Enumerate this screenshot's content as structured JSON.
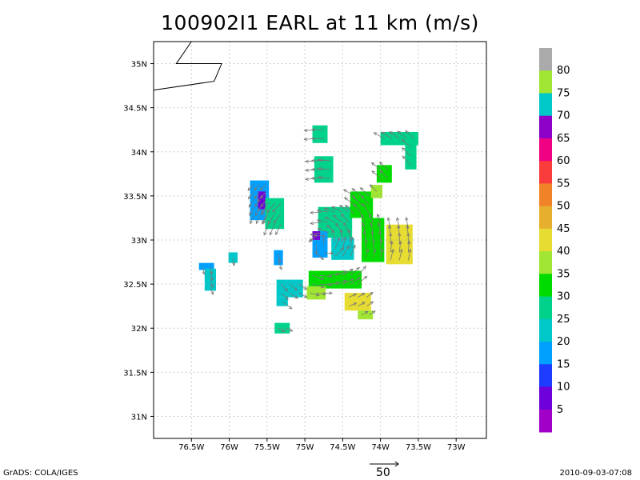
{
  "title": "100902I1 EARL at 11 km (m/s)",
  "footer": {
    "left": "GrADS: COLA/IGES",
    "right": "2010-09-03-07:08",
    "vector_scale_label": "50"
  },
  "chart_data": {
    "type": "heatmap",
    "title": "100902I1 EARL at 11 km (m/s)",
    "xlim": [
      -77.0,
      -72.6
    ],
    "ylim": [
      30.75,
      35.25
    ],
    "x_tick_values": [
      -76.5,
      -76.0,
      -75.5,
      -75.0,
      -74.5,
      -74.0,
      -73.5,
      -73.0
    ],
    "x_tick_labels": [
      "76.5W",
      "76W",
      "75.5W",
      "75W",
      "74.5W",
      "74W",
      "73.5W",
      "73W"
    ],
    "y_tick_values": [
      31.0,
      31.5,
      32.0,
      32.5,
      33.0,
      33.5,
      34.0,
      34.5,
      35.0
    ],
    "y_tick_labels": [
      "31N",
      "31.5N",
      "32N",
      "32.5N",
      "33N",
      "33.5N",
      "34N",
      "34.5N",
      "35N"
    ],
    "grid": true,
    "colorbar": {
      "labels": [
        "5",
        "10",
        "15",
        "20",
        "25",
        "30",
        "35",
        "40",
        "45",
        "50",
        "55",
        "60",
        "65",
        "70",
        "75",
        "80"
      ],
      "colors": [
        "#a000c8",
        "#6e00dc",
        "#1e3cff",
        "#00a0ff",
        "#00c8c8",
        "#00d28c",
        "#00dc00",
        "#a0e632",
        "#e6dc32",
        "#e6af2d",
        "#f08228",
        "#fa3c3c",
        "#f00082",
        "#8c00c8",
        "#00c8c8",
        "#a0e632",
        "#aaaaaa"
      ]
    },
    "vector_scale": 50,
    "coastline": [
      [
        -76.5,
        35.25
      ],
      [
        -76.7,
        35.0
      ],
      [
        -76.1,
        35.0
      ],
      [
        -76.2,
        34.8
      ],
      [
        -77.0,
        34.7
      ]
    ],
    "coastline_dashed": [
      [
        -76.7,
        35.0
      ],
      [
        -76.3,
        35.0
      ]
    ],
    "cells": [
      {
        "lon": -76.3,
        "lat": 32.7,
        "lon_w": 0.2,
        "lat_h": 0.08,
        "v": 15
      },
      {
        "lon": -76.25,
        "lat": 32.55,
        "lon_w": 0.15,
        "lat_h": 0.25,
        "v": 22
      },
      {
        "lon": -75.95,
        "lat": 32.8,
        "lon_w": 0.12,
        "lat_h": 0.12,
        "v": 22
      },
      {
        "lon": -75.6,
        "lat": 33.45,
        "lon_w": 0.25,
        "lat_h": 0.45,
        "v": 15
      },
      {
        "lon": -75.57,
        "lat": 33.45,
        "lon_w": 0.1,
        "lat_h": 0.2,
        "v": 7
      },
      {
        "lon": -75.4,
        "lat": 33.3,
        "lon_w": 0.25,
        "lat_h": 0.35,
        "v": 27
      },
      {
        "lon": -75.35,
        "lat": 32.8,
        "lon_w": 0.12,
        "lat_h": 0.17,
        "v": 16
      },
      {
        "lon": -75.2,
        "lat": 32.45,
        "lon_w": 0.35,
        "lat_h": 0.2,
        "v": 24
      },
      {
        "lon": -75.3,
        "lat": 32.3,
        "lon_w": 0.15,
        "lat_h": 0.1,
        "v": 20
      },
      {
        "lon": -75.3,
        "lat": 32.0,
        "lon_w": 0.2,
        "lat_h": 0.12,
        "v": 28
      },
      {
        "lon": -74.8,
        "lat": 34.2,
        "lon_w": 0.2,
        "lat_h": 0.2,
        "v": 27
      },
      {
        "lon": -74.75,
        "lat": 33.8,
        "lon_w": 0.25,
        "lat_h": 0.3,
        "v": 27
      },
      {
        "lon": -74.6,
        "lat": 33.2,
        "lon_w": 0.45,
        "lat_h": 0.35,
        "v": 26
      },
      {
        "lon": -74.8,
        "lat": 32.95,
        "lon_w": 0.2,
        "lat_h": 0.3,
        "v": 17
      },
      {
        "lon": -74.85,
        "lat": 33.05,
        "lon_w": 0.1,
        "lat_h": 0.1,
        "v": 8
      },
      {
        "lon": -74.5,
        "lat": 32.9,
        "lon_w": 0.3,
        "lat_h": 0.25,
        "v": 20
      },
      {
        "lon": -74.6,
        "lat": 32.55,
        "lon_w": 0.7,
        "lat_h": 0.2,
        "v": 34
      },
      {
        "lon": -74.85,
        "lat": 32.4,
        "lon_w": 0.25,
        "lat_h": 0.15,
        "v": 38
      },
      {
        "lon": -74.3,
        "lat": 32.3,
        "lon_w": 0.35,
        "lat_h": 0.2,
        "v": 43
      },
      {
        "lon": -74.2,
        "lat": 32.15,
        "lon_w": 0.2,
        "lat_h": 0.1,
        "v": 35
      },
      {
        "lon": -74.25,
        "lat": 33.4,
        "lon_w": 0.3,
        "lat_h": 0.3,
        "v": 34
      },
      {
        "lon": -74.05,
        "lat": 33.55,
        "lon_w": 0.15,
        "lat_h": 0.15,
        "v": 38
      },
      {
        "lon": -74.1,
        "lat": 33.0,
        "lon_w": 0.3,
        "lat_h": 0.5,
        "v": 30
      },
      {
        "lon": -73.75,
        "lat": 32.95,
        "lon_w": 0.35,
        "lat_h": 0.45,
        "v": 40
      },
      {
        "lon": -73.95,
        "lat": 33.75,
        "lon_w": 0.2,
        "lat_h": 0.2,
        "v": 33
      },
      {
        "lon": -73.75,
        "lat": 34.15,
        "lon_w": 0.5,
        "lat_h": 0.15,
        "v": 27
      },
      {
        "lon": -73.6,
        "lat": 33.95,
        "lon_w": 0.15,
        "lat_h": 0.3,
        "v": 27
      }
    ]
  }
}
